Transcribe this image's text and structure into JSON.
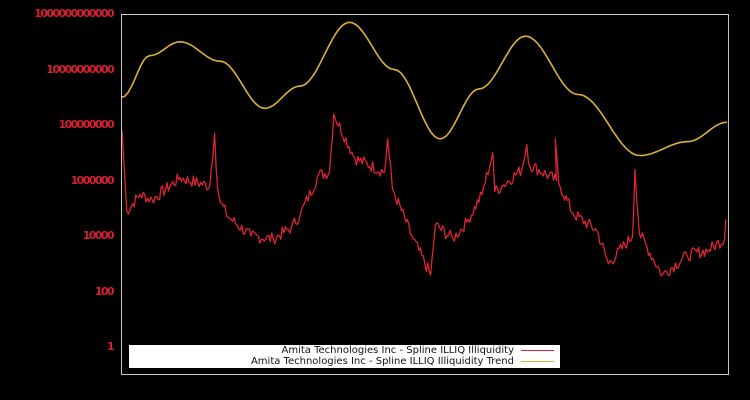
{
  "colors": {
    "background": "#000000",
    "frame": "#c8c8c8",
    "tick_label": "#d42030",
    "series_illiq": "#dc2433",
    "series_trend": "#dcb03a",
    "legend_bg": "#ffffff",
    "legend_text": "#111111"
  },
  "legend": {
    "items": [
      {
        "label": "Amita Technologies Inc - Spline ILLIQ Illiquidity",
        "color": "#dc2433"
      },
      {
        "label": "Amita Technologies Inc - Spline ILLIQ Illiquidity Trend",
        "color": "#dcb03a"
      }
    ]
  },
  "yaxis": {
    "tick_labels": [
      "1000000000000",
      "10000000000",
      "100000000",
      "1000000",
      "10000",
      "100",
      "1"
    ]
  },
  "chart_data": {
    "type": "line",
    "title": "",
    "xlabel": "",
    "ylabel": "",
    "yscale": "log",
    "ylim": [
      0.1,
      1000000000000
    ],
    "xlim": [
      0,
      100
    ],
    "grid": false,
    "legend_position": "lower left (inside)",
    "yticks": [
      1,
      100,
      10000,
      1000000,
      100000000,
      10000000000,
      1000000000000
    ],
    "ytick_labels": [
      "1",
      "100",
      "10000",
      "1000000",
      "100000000",
      "10000000000",
      "1000000000000"
    ],
    "x_tick_labels": [],
    "series": [
      {
        "name": "Amita Technologies Inc - Spline ILLIQ Illiquidity",
        "color": "#dc2433",
        "x": [
          0,
          0.8,
          3,
          5,
          9.6,
          14.5,
          15.3,
          15.8,
          16.3,
          17.5,
          21.3,
          25,
          28,
          29.5,
          32.5,
          34.3,
          35,
          38.5,
          43.4,
          43.9,
          44.7,
          47.9,
          51,
          51.8,
          54.7,
          57,
          59.5,
          61.3,
          61.6,
          62.8,
          66.1,
          66.9,
          67.2,
          71.8,
          71.6,
          72.2,
          74.6,
          78.5,
          80.4,
          84.4,
          84.8,
          85.5,
          89.3,
          93.4,
          97,
          99.6,
          99.8
        ],
        "values_log10": [
          7.8,
          4.9,
          5.5,
          5.3,
          6.1,
          5.8,
          7.7,
          5.7,
          5.2,
          4.7,
          4.0,
          3.9,
          4.3,
          4.8,
          6.2,
          6.3,
          8.4,
          6.8,
          6.3,
          7.5,
          5.7,
          4.0,
          2.6,
          4.4,
          3.9,
          4.5,
          5.5,
          7.0,
          5.6,
          5.8,
          6.4,
          7.3,
          6.6,
          6.0,
          7.5,
          5.9,
          4.8,
          4.2,
          3.0,
          4.0,
          6.4,
          4.1,
          2.6,
          3.3,
          3.5,
          3.9,
          4.6
        ]
      },
      {
        "name": "Amita Technologies Inc - Spline ILLIQ Illiquidity Trend",
        "color": "#dcb03a",
        "x": [
          0,
          4.6,
          9.6,
          16.2,
          23.6,
          29.4,
          37.6,
          45,
          52.6,
          59,
          66.7,
          75.4,
          85.6,
          93.5,
          100
        ],
        "values_log10": [
          9.0,
          10.5,
          11.0,
          10.3,
          8.6,
          9.4,
          11.7,
          10.0,
          7.5,
          9.3,
          11.2,
          9.1,
          6.9,
          7.4,
          8.1
        ]
      }
    ]
  }
}
